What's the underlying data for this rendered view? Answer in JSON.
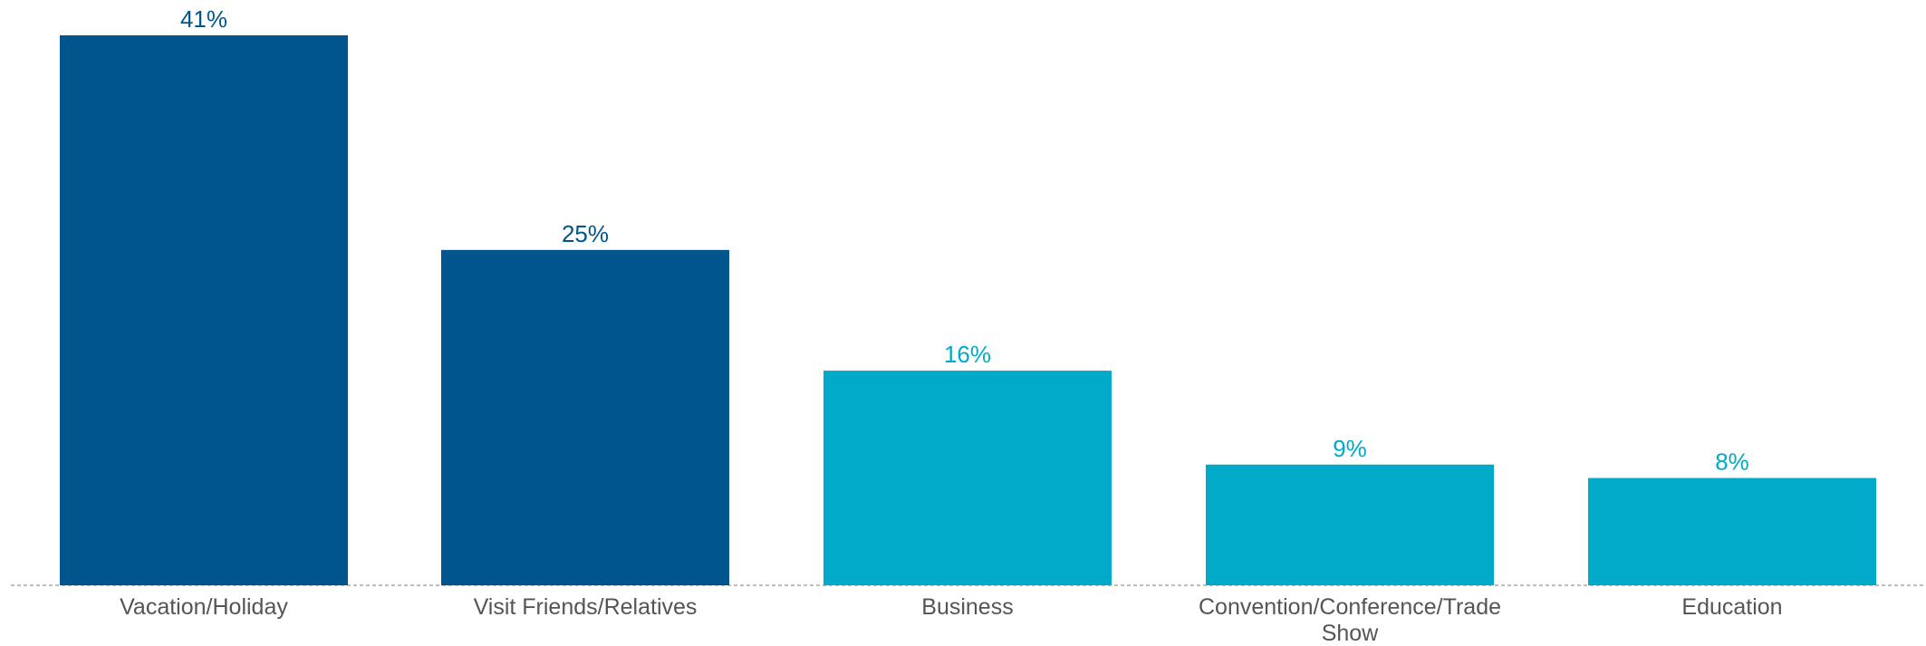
{
  "chart_data": {
    "type": "bar",
    "title": "",
    "xlabel": "",
    "ylabel": "",
    "categories": [
      "Vacation/Holiday",
      "Visit Friends/Relatives",
      "Business",
      "Convention/Conference/Trade Show",
      "Education"
    ],
    "values": [
      41,
      25,
      16,
      9,
      8
    ],
    "value_labels": [
      "41%",
      "25%",
      "16%",
      "9%",
      "8%"
    ],
    "bar_colors": [
      "#00558C",
      "#00558C",
      "#00AAC8",
      "#00AAC8",
      "#00AAC8"
    ],
    "ylim": [
      0,
      41
    ],
    "grid": false,
    "legend": "none",
    "baseline_style": "dashed"
  }
}
